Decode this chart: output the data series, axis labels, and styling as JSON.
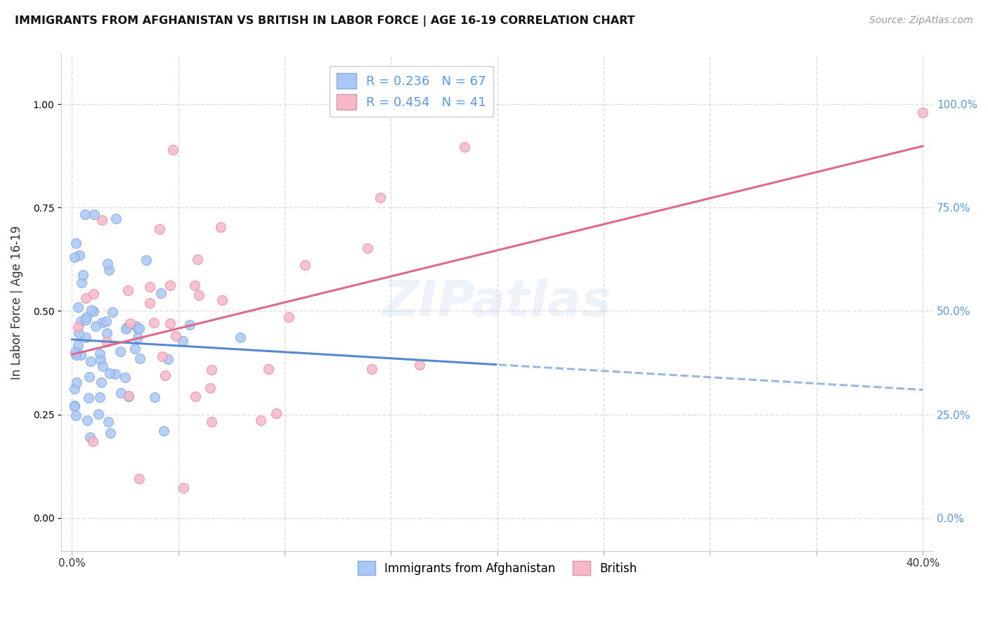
{
  "title": "IMMIGRANTS FROM AFGHANISTAN VS BRITISH IN LABOR FORCE | AGE 16-19 CORRELATION CHART",
  "source": "Source: ZipAtlas.com",
  "ylabel": "In Labor Force | Age 16-19",
  "xlim": [
    0.0,
    0.4
  ],
  "ylim": [
    -0.08,
    1.12
  ],
  "yticks": [
    0.0,
    0.25,
    0.5,
    0.75,
    1.0
  ],
  "ytick_labels": [
    "0.0%",
    "25.0%",
    "50.0%",
    "75.0%",
    "100.0%"
  ],
  "xticks": [
    0.0,
    0.05,
    0.1,
    0.15,
    0.2,
    0.25,
    0.3,
    0.35,
    0.4
  ],
  "xtick_labels": [
    "0.0%",
    "",
    "",
    "",
    "",
    "",
    "",
    "",
    "40.0%"
  ],
  "afghanistan_color": "#A8C8F8",
  "british_color": "#F8B8C8",
  "afghanistan_edge": "#88A8E0",
  "british_edge": "#E090A8",
  "afghanistan_line_color": "#5588CC",
  "british_line_color": "#E06888",
  "r_afghanistan": 0.236,
  "n_afghanistan": 67,
  "r_british": 0.454,
  "n_british": 41,
  "watermark": "ZIPatlas",
  "background_color": "#ffffff",
  "grid_color": "#dddddd",
  "right_tick_color": "#5599EE",
  "bottom_legend_labels": [
    "Immigrants from Afghanistan",
    "British"
  ]
}
